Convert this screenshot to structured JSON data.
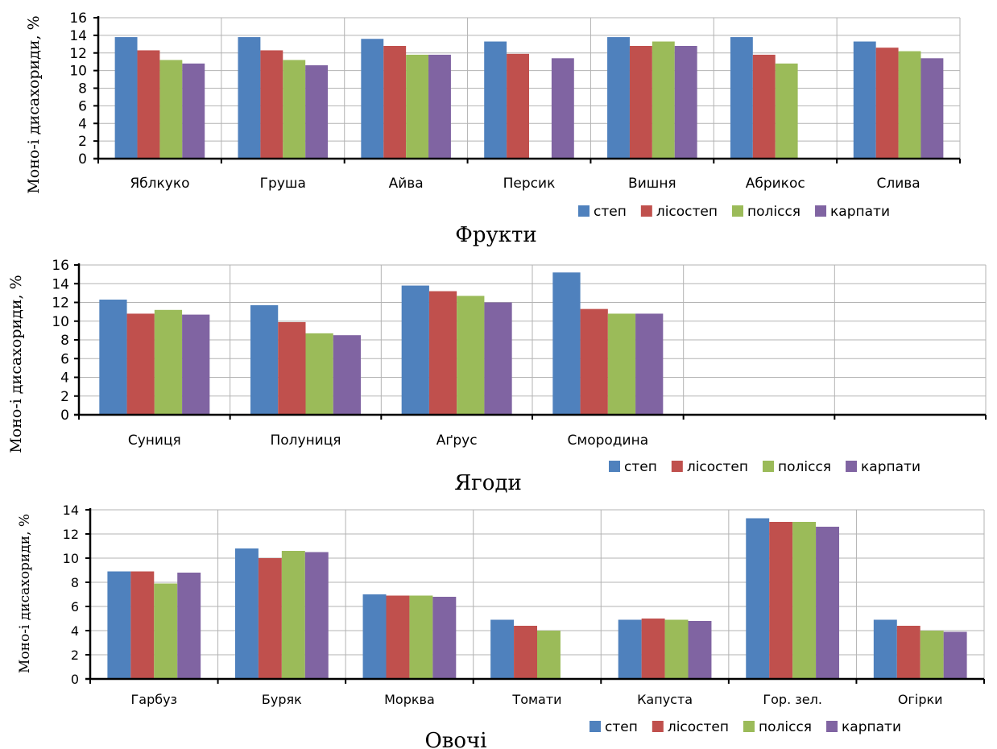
{
  "colors": {
    "степ": "#4f81bd",
    "лісостеп": "#c0504d",
    "полісся": "#9bbb59",
    "карпати": "#8064a2",
    "grid": "#b3b3b3",
    "axis": "#000000"
  },
  "chart_data": [
    {
      "type": "bar",
      "title": "Фрукти",
      "ylabel": "Моно-і дисахориди, %",
      "ylim": [
        0,
        16
      ],
      "yticks": [
        0,
        2,
        4,
        6,
        8,
        10,
        12,
        14,
        16
      ],
      "categories": [
        "Яблкуко",
        "Груша",
        "Айва",
        "Персик",
        "Вишня",
        "Абрикос",
        "Слива"
      ],
      "series": [
        {
          "name": "степ",
          "values": [
            13.8,
            13.8,
            13.6,
            13.3,
            13.8,
            13.8,
            13.3
          ]
        },
        {
          "name": "лісостеп",
          "values": [
            12.3,
            12.3,
            12.8,
            11.9,
            12.8,
            11.8,
            12.6
          ]
        },
        {
          "name": "полісся",
          "values": [
            11.2,
            11.2,
            11.8,
            null,
            13.3,
            10.8,
            12.2
          ]
        },
        {
          "name": "карпати",
          "values": [
            10.8,
            10.6,
            11.8,
            11.4,
            12.8,
            null,
            11.4
          ]
        }
      ],
      "legend": "bottom-right",
      "grid": true
    },
    {
      "type": "bar",
      "title": "Ягоди",
      "ylabel": "Моно-і дисахориди, %",
      "ylim": [
        0,
        16
      ],
      "yticks": [
        0,
        2,
        4,
        6,
        8,
        10,
        12,
        14,
        16
      ],
      "categories": [
        "Суниця",
        "Полуниця",
        "Аґрус",
        "Смородина",
        "",
        ""
      ],
      "series": [
        {
          "name": "степ",
          "values": [
            12.3,
            11.7,
            13.8,
            15.2,
            null,
            null
          ]
        },
        {
          "name": "лісостеп",
          "values": [
            10.8,
            9.9,
            13.2,
            11.3,
            null,
            null
          ]
        },
        {
          "name": "полісся",
          "values": [
            11.2,
            8.7,
            12.7,
            10.8,
            null,
            null
          ]
        },
        {
          "name": "карпати",
          "values": [
            10.7,
            8.5,
            12.0,
            10.8,
            null,
            null
          ]
        }
      ],
      "legend": "bottom-right",
      "grid": true
    },
    {
      "type": "bar",
      "title": "Овочі",
      "ylabel": "Моно-і дисахориди, %",
      "ylim": [
        0,
        14
      ],
      "yticks": [
        0,
        2,
        4,
        6,
        8,
        10,
        12,
        14
      ],
      "categories": [
        "Гарбуз",
        "Буряк",
        "Морква",
        "Томати",
        "Капуста",
        "Гор. зел.",
        "Огірки"
      ],
      "series": [
        {
          "name": "степ",
          "values": [
            8.9,
            10.8,
            7.0,
            4.9,
            4.9,
            13.3,
            4.9
          ]
        },
        {
          "name": "лісостеп",
          "values": [
            8.9,
            10.0,
            6.9,
            4.4,
            5.0,
            13.0,
            4.4
          ]
        },
        {
          "name": "полісся",
          "values": [
            7.9,
            10.6,
            6.9,
            4.0,
            4.9,
            13.0,
            4.0
          ]
        },
        {
          "name": "карпати",
          "values": [
            8.8,
            10.5,
            6.8,
            null,
            4.8,
            12.6,
            3.9
          ]
        }
      ],
      "legend": "bottom-right",
      "grid": true
    }
  ]
}
